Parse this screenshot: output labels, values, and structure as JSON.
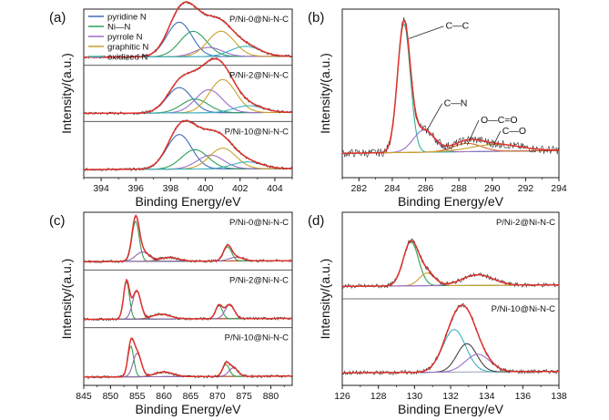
{
  "colors": {
    "envelope": "#e0302a",
    "raw": "#2a2a2a",
    "background": "#9aa3b0",
    "pyridine_N": "#3f6fb5",
    "Ni_N": "#2e9e5b",
    "pyrrole_N": "#9b6fc8",
    "graphitic_N": "#c9a12a",
    "oxidized_N": "#3bb3c3",
    "C_C": "#2fb39a",
    "C_N": "#9b6fc8",
    "O_C_O": "#d0682a",
    "C_O": "#c9a12a",
    "Ni_peak_1": "#3c9a5a",
    "Ni_peak_2": "#8c6aa8",
    "Ni_peak_3": "#c25a2a",
    "P_peak_1": "#2e9e5b",
    "P_peak_2": "#c9a12a",
    "P_peak_3": "#9b6fc8",
    "P_peak_4": "#3bb3c3",
    "P_peak_5": "#444444"
  },
  "chart_data": [
    {
      "id": "a",
      "panel_label": "(a)",
      "type": "line",
      "xlabel": "Binding Energy/eV",
      "ylabel": "Intensity/(a.u.)",
      "xlim": [
        393,
        405
      ],
      "x_reversed": false,
      "xticks": [
        "394",
        "396",
        "398",
        "400",
        "402",
        "404"
      ],
      "legend": [
        "pyridine N",
        "Ni—N",
        "pyrrole N",
        "graphitic N",
        "oxidized N"
      ],
      "legend_colors": [
        "pyridine_N",
        "Ni_N",
        "pyrrole_N",
        "graphitic_N",
        "oxidized_N"
      ],
      "stack_labels": [],
      "stacks": [
        {
          "label": "P/Ni-0@Ni-N-C",
          "label_pos": "right",
          "peaks": [
            {
              "name": "pyridine N",
              "center": 398.5,
              "amplitude": 0.75,
              "fwhm": 1.7,
              "color": "pyridine_N"
            },
            {
              "name": "Ni—N",
              "center": 399.3,
              "amplitude": 0.55,
              "fwhm": 1.8,
              "color": "Ni_N"
            },
            {
              "name": "pyrrole N",
              "center": 400.2,
              "amplitude": 0.2,
              "fwhm": 1.8,
              "color": "pyrrole_N"
            },
            {
              "name": "graphitic N",
              "center": 400.9,
              "amplitude": 0.55,
              "fwhm": 1.8,
              "color": "graphitic_N"
            },
            {
              "name": "oxidized N",
              "center": 402.3,
              "amplitude": 0.22,
              "fwhm": 2.0,
              "color": "oxidized_N"
            }
          ]
        },
        {
          "label": "P/Ni-2@Ni-N-C",
          "label_pos": "right",
          "peaks": [
            {
              "name": "pyridine N",
              "center": 398.5,
              "amplitude": 0.55,
              "fwhm": 1.7,
              "color": "pyridine_N"
            },
            {
              "name": "Ni—N",
              "center": 399.4,
              "amplitude": 0.3,
              "fwhm": 1.8,
              "color": "Ni_N"
            },
            {
              "name": "pyrrole N",
              "center": 400.2,
              "amplitude": 0.5,
              "fwhm": 1.8,
              "color": "pyrrole_N"
            },
            {
              "name": "graphitic N",
              "center": 401.0,
              "amplitude": 0.72,
              "fwhm": 1.8,
              "color": "graphitic_N"
            },
            {
              "name": "oxidized N",
              "center": 402.5,
              "amplitude": 0.15,
              "fwhm": 2.0,
              "color": "oxidized_N"
            }
          ]
        },
        {
          "label": "P/Ni-10@Ni-N-C",
          "label_pos": "right",
          "peaks": [
            {
              "name": "pyridine N",
              "center": 398.5,
              "amplitude": 0.75,
              "fwhm": 1.7,
              "color": "pyridine_N"
            },
            {
              "name": "Ni—N",
              "center": 399.4,
              "amplitude": 0.42,
              "fwhm": 1.8,
              "color": "Ni_N"
            },
            {
              "name": "pyrrole N",
              "center": 400.3,
              "amplitude": 0.3,
              "fwhm": 1.8,
              "color": "pyrrole_N"
            },
            {
              "name": "graphitic N",
              "center": 401.0,
              "amplitude": 0.45,
              "fwhm": 1.8,
              "color": "graphitic_N"
            },
            {
              "name": "oxidized N",
              "center": 402.4,
              "amplitude": 0.15,
              "fwhm": 2.0,
              "color": "oxidized_N"
            }
          ]
        }
      ]
    },
    {
      "id": "b",
      "panel_label": "(b)",
      "type": "line",
      "xlabel": "Binding Energy/eV",
      "ylabel": "Intensity/(a.u.)",
      "xlim": [
        281,
        294
      ],
      "x_reversed": false,
      "xticks": [
        "282",
        "284",
        "286",
        "288",
        "290",
        "292",
        "294"
      ],
      "legend": [],
      "legend_colors": [],
      "stack_labels": [
        {
          "text": "C—C",
          "x": 287.2,
          "y": 0.93,
          "arrow_x": 285.0,
          "arrow_y": 0.86
        },
        {
          "text": "C—N",
          "x": 287.1,
          "y": 0.37,
          "arrow_x": 286.1,
          "arrow_y": 0.2
        },
        {
          "text": "O—C=O",
          "x": 289.3,
          "y": 0.25,
          "arrow_x": 288.5,
          "arrow_y": 0.09
        },
        {
          "text": "C—O",
          "x": 290.6,
          "y": 0.17,
          "arrow_x": 290.0,
          "arrow_y": 0.07
        }
      ],
      "stacks": [
        {
          "label": "",
          "label_pos": "right",
          "peaks": [
            {
              "name": "C—C",
              "center": 284.7,
              "amplitude": 0.93,
              "fwhm": 0.9,
              "color": "C_C"
            },
            {
              "name": "C—N",
              "center": 285.9,
              "amplitude": 0.16,
              "fwhm": 1.5,
              "color": "C_N"
            },
            {
              "name": "O—C=O",
              "center": 288.5,
              "amplitude": 0.06,
              "fwhm": 2.0,
              "color": "O_C_O"
            },
            {
              "name": "C—O",
              "center": 290.2,
              "amplitude": 0.05,
              "fwhm": 3.5,
              "color": "C_O"
            }
          ]
        }
      ]
    },
    {
      "id": "c",
      "panel_label": "(c)",
      "type": "line",
      "xlabel": "Binding Energy/eV",
      "ylabel": "Intensity/(a.u.)",
      "xlim": [
        845,
        884
      ],
      "x_reversed": false,
      "xticks": [
        "845",
        "850",
        "855",
        "860",
        "865",
        "870",
        "875",
        "880"
      ],
      "legend": [],
      "legend_colors": [],
      "stack_labels": [],
      "stacks": [
        {
          "label": "P/Ni-0@Ni-N-C",
          "label_pos": "right",
          "peaks": [
            {
              "name": "peak 1",
              "center": 854.7,
              "amplitude": 0.85,
              "fwhm": 1.6,
              "color": "Ni_peak_1"
            },
            {
              "name": "peak 2",
              "center": 856.0,
              "amplitude": 0.2,
              "fwhm": 3.0,
              "color": "Ni_peak_2"
            },
            {
              "name": "peak 3",
              "center": 861.0,
              "amplitude": 0.08,
              "fwhm": 4.0,
              "color": "Ni_peak_3"
            },
            {
              "name": "peak 4",
              "center": 871.9,
              "amplitude": 0.3,
              "fwhm": 1.8,
              "color": "Ni_peak_1"
            },
            {
              "name": "peak 5",
              "center": 873.5,
              "amplitude": 0.08,
              "fwhm": 3.0,
              "color": "Ni_peak_2"
            }
          ]
        },
        {
          "label": "P/Ni-2@Ni-N-C",
          "label_pos": "right",
          "peaks": [
            {
              "name": "peak 1",
              "center": 853.0,
              "amplitude": 0.8,
              "fwhm": 1.3,
              "color": "Ni_peak_1"
            },
            {
              "name": "peak 2",
              "center": 854.9,
              "amplitude": 0.6,
              "fwhm": 1.8,
              "color": "Ni_peak_2"
            },
            {
              "name": "peak 3",
              "center": 859.5,
              "amplitude": 0.1,
              "fwhm": 4.0,
              "color": "Ni_peak_3"
            },
            {
              "name": "peak 4",
              "center": 870.3,
              "amplitude": 0.28,
              "fwhm": 1.5,
              "color": "Ni_peak_1"
            },
            {
              "name": "peak 5",
              "center": 872.3,
              "amplitude": 0.3,
              "fwhm": 2.0,
              "color": "Ni_peak_2"
            }
          ]
        },
        {
          "label": "P/Ni-10@Ni-N-C",
          "label_pos": "right",
          "peaks": [
            {
              "name": "peak 1",
              "center": 853.8,
              "amplitude": 0.65,
              "fwhm": 1.3,
              "color": "Ni_peak_1"
            },
            {
              "name": "peak 2",
              "center": 855.0,
              "amplitude": 0.5,
              "fwhm": 1.8,
              "color": "Ni_peak_2"
            },
            {
              "name": "peak 3",
              "center": 860.0,
              "amplitude": 0.1,
              "fwhm": 4.0,
              "color": "Ni_peak_3"
            },
            {
              "name": "peak 4",
              "center": 871.6,
              "amplitude": 0.25,
              "fwhm": 1.5,
              "color": "Ni_peak_1"
            },
            {
              "name": "peak 5",
              "center": 873.0,
              "amplitude": 0.18,
              "fwhm": 2.0,
              "color": "Ni_peak_2"
            }
          ]
        }
      ]
    },
    {
      "id": "d",
      "panel_label": "(d)",
      "type": "line",
      "xlabel": "Binding Energy/eV",
      "ylabel": "Intensity/(a.u.)",
      "xlim": [
        126,
        138
      ],
      "x_reversed": false,
      "xticks": [
        "126",
        "128",
        "130",
        "132",
        "134",
        "136",
        "138"
      ],
      "legend": [],
      "legend_colors": [],
      "stack_labels": [],
      "stacks": [
        {
          "label": "P/Ni-2@Ni-N-C",
          "label_pos": "right",
          "peaks": [
            {
              "name": "peak 1",
              "center": 129.8,
              "amplitude": 0.62,
              "fwhm": 1.0,
              "color": "P_peak_1"
            },
            {
              "name": "peak 2",
              "center": 130.7,
              "amplitude": 0.18,
              "fwhm": 1.0,
              "color": "P_peak_2"
            },
            {
              "name": "peak 3",
              "center": 133.5,
              "amplitude": 0.15,
              "fwhm": 2.0,
              "color": "P_peak_3"
            }
          ]
        },
        {
          "label": "P/Ni-10@Ni-N-C",
          "label_pos": "right",
          "peaks": [
            {
              "name": "peak 1",
              "center": 132.2,
              "amplitude": 0.6,
              "fwhm": 1.5,
              "color": "P_peak_4"
            },
            {
              "name": "peak 2",
              "center": 132.9,
              "amplitude": 0.4,
              "fwhm": 1.3,
              "color": "P_peak_5"
            },
            {
              "name": "peak 3",
              "center": 133.5,
              "amplitude": 0.25,
              "fwhm": 1.6,
              "color": "P_peak_3"
            }
          ]
        }
      ]
    }
  ]
}
